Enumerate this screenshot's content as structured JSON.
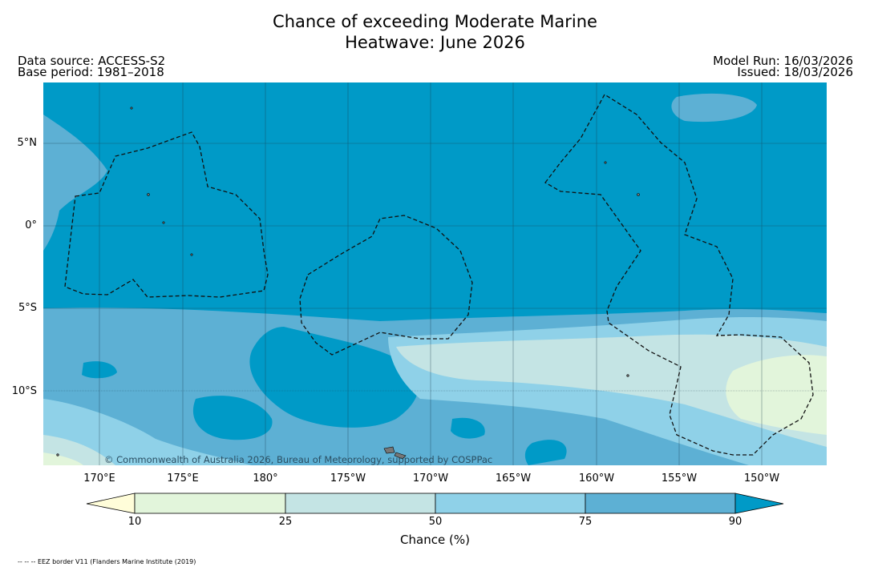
{
  "title_line1": "Chance of exceeding Moderate Marine",
  "title_line2": "Heatwave: June 2026",
  "data_source": "Data source: ACCESS-S2",
  "base_period": "Base period: 1981–2018",
  "model_run": "Model Run: 16/03/2026",
  "issued": "Issued: 18/03/2026",
  "copyright": "© Commonwealth of Australia 2026, Bureau of Meteorology, supported by COSPPac",
  "lat_ticks": [
    "5°N",
    "0°",
    "5°S",
    "10°S"
  ],
  "lon_ticks": [
    "170°E",
    "175°E",
    "180°",
    "175°W",
    "170°W",
    "165°W",
    "160°W",
    "155°W",
    "150°W"
  ],
  "colorbar": {
    "label": "Chance (%)",
    "ticks": [
      "10",
      "25",
      "50",
      "75",
      "90"
    ],
    "colors": [
      "#fffdd9",
      "#e2f5db",
      "#c4e4e4",
      "#8fd1e8",
      "#5db0d4",
      "#009ac7"
    ]
  },
  "eez_legend": "-- -- -- EEZ border V11 (Flanders Marine Institute (2019)"
}
